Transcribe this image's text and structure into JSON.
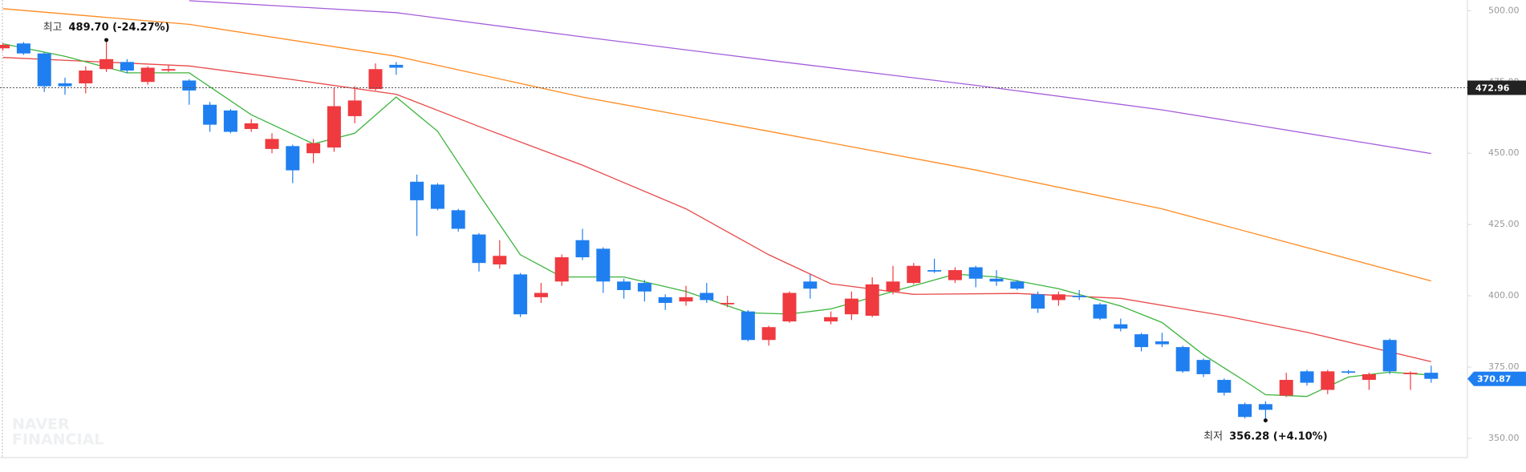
{
  "chart_data": {
    "type": "candlestick",
    "open": [
      486.8,
      488.5,
      485.0,
      474.5,
      474.5,
      479.5,
      482.0,
      475.0,
      479.0,
      475.5,
      467.0,
      465.0,
      458.5,
      451.5,
      452.5,
      450.0,
      452.0,
      463.0,
      472.5,
      481.0,
      440.0,
      439.0,
      430.0,
      421.5,
      411.0,
      407.5,
      399.5,
      405.0,
      419.5,
      416.5,
      405.0,
      404.5,
      399.5,
      398.0,
      401.0,
      397.0,
      394.5,
      384.5,
      391.0,
      405.0,
      391.0,
      393.5,
      393.0,
      401.5,
      404.5,
      409.0,
      405.5,
      410.0,
      406.0,
      405.0,
      400.5,
      398.5,
      400.0,
      397.0,
      390.0,
      386.5,
      384.0,
      382.0,
      377.5,
      370.5,
      362.0,
      362.0,
      365.0,
      373.5,
      367.0,
      373.5,
      370.5,
      384.5,
      372.5,
      373.0
    ],
    "high": [
      488.6,
      489.0,
      485.3,
      476.5,
      480.5,
      489.7,
      483.0,
      480.5,
      481.0,
      476.0,
      468.0,
      465.5,
      462.0,
      457.0,
      453.0,
      455.0,
      473.0,
      473.5,
      481.5,
      482.0,
      442.5,
      439.5,
      430.5,
      422.0,
      419.5,
      408.0,
      404.5,
      414.5,
      423.5,
      417.0,
      406.0,
      405.5,
      400.5,
      403.5,
      404.5,
      400.0,
      395.0,
      389.5,
      401.5,
      407.5,
      394.5,
      401.5,
      406.5,
      410.5,
      411.5,
      413.0,
      410.0,
      410.5,
      409.0,
      405.5,
      401.5,
      401.5,
      402.0,
      397.5,
      392.0,
      387.0,
      387.0,
      382.5,
      378.0,
      371.0,
      362.5,
      363.0,
      373.0,
      374.0,
      374.0,
      374.0,
      373.0,
      385.0,
      373.5,
      375.5
    ],
    "low": [
      486.0,
      484.5,
      471.5,
      470.5,
      471.0,
      478.5,
      478.0,
      474.0,
      478.5,
      467.0,
      457.5,
      457.0,
      457.5,
      450.0,
      439.5,
      446.5,
      450.5,
      460.5,
      472.0,
      477.5,
      421.0,
      430.0,
      422.5,
      408.5,
      409.5,
      392.5,
      397.5,
      403.5,
      412.5,
      401.0,
      399.0,
      398.0,
      395.0,
      396.5,
      397.5,
      396.0,
      384.0,
      382.5,
      390.5,
      399.0,
      390.0,
      391.5,
      392.5,
      400.5,
      404.0,
      408.0,
      404.5,
      403.0,
      403.5,
      402.0,
      394.0,
      396.5,
      398.5,
      391.5,
      387.5,
      380.5,
      382.0,
      373.0,
      371.5,
      365.0,
      357.0,
      356.28,
      364.5,
      368.5,
      365.5,
      372.5,
      367.0,
      372.5,
      367.0,
      369.5
    ],
    "close": [
      488.0,
      485.0,
      473.5,
      473.5,
      479.0,
      483.0,
      479.0,
      480.0,
      479.5,
      472.0,
      460.0,
      457.5,
      460.5,
      455.0,
      444.0,
      453.5,
      466.5,
      468.5,
      479.5,
      480.0,
      433.5,
      430.5,
      423.5,
      411.5,
      414.0,
      393.5,
      401.0,
      413.5,
      413.5,
      405.0,
      402.0,
      401.5,
      397.5,
      399.5,
      398.5,
      397.5,
      384.5,
      389.0,
      401.0,
      402.5,
      392.5,
      399.0,
      404.0,
      405.0,
      410.5,
      408.5,
      409.0,
      406.0,
      405.0,
      402.5,
      395.5,
      400.5,
      399.5,
      392.0,
      388.5,
      382.0,
      383.0,
      373.5,
      372.5,
      366.0,
      357.5,
      360.0,
      370.5,
      369.5,
      373.5,
      373.0,
      372.5,
      373.5,
      373.0,
      370.87
    ],
    "up_color": "#ef3a3f",
    "down_color": "#1f7ff0",
    "series": [
      {
        "color": "#a55ddb",
        "x": [
          9,
          19,
          28,
          37,
          47,
          56,
          69
        ],
        "values": [
          503.5,
          499.3,
          490.8,
          482.6,
          473.8,
          465.2,
          449.9
        ]
      },
      {
        "color": "#ff8a1f",
        "x": [
          0,
          9,
          19,
          28,
          37,
          47,
          56,
          69
        ],
        "values": [
          500.7,
          495.2,
          484.0,
          469.7,
          457.7,
          444.1,
          430.5,
          405.2
        ]
      },
      {
        "color": "#e84848",
        "x": [
          0,
          9,
          14,
          19,
          23,
          28,
          33,
          37,
          40,
          44,
          49,
          54,
          59,
          63,
          69
        ],
        "values": [
          483.6,
          480.6,
          475.8,
          470.7,
          459.4,
          445.8,
          430.5,
          414.4,
          404.2,
          400.5,
          400.8,
          399.1,
          393.0,
          387.2,
          376.9
        ]
      },
      {
        "color": "#3cb43c",
        "x": [
          0,
          3,
          6,
          9,
          12,
          15,
          17,
          19,
          21,
          23,
          25,
          27,
          30,
          33,
          36,
          38,
          40,
          43,
          46,
          48,
          51,
          54,
          56,
          58,
          60,
          61,
          63,
          65,
          67,
          69
        ],
        "values": [
          488.4,
          484.0,
          478.2,
          478.2,
          463.5,
          453.3,
          457.0,
          469.7,
          457.7,
          435.6,
          414.4,
          406.6,
          406.6,
          401.5,
          394.0,
          393.6,
          395.4,
          401.5,
          407.6,
          406.6,
          402.5,
          396.4,
          390.6,
          379.3,
          370.1,
          365.3,
          364.7,
          371.5,
          373.2,
          372.2
        ]
      }
    ],
    "ylim": [
      343.25,
      503.74
    ],
    "yticks": [
      {
        "value": 350,
        "label": "350.00"
      },
      {
        "value": 375,
        "label": "375.00"
      },
      {
        "value": 400,
        "label": "400.00"
      },
      {
        "value": 425,
        "label": "425.00"
      },
      {
        "value": 450,
        "label": "450.00"
      },
      {
        "value": 475,
        "label": "475.00"
      },
      {
        "value": 500,
        "label": "500.00"
      }
    ],
    "price_line": 472.96,
    "high_annotation": {
      "label": "최고",
      "value_text": "489.70 (-24.27%)"
    },
    "low_annotation": {
      "label": "최저",
      "value_text": "356.28 (+4.10%)"
    },
    "watermark": [
      "NAVER",
      "FINANCIAL"
    ]
  }
}
